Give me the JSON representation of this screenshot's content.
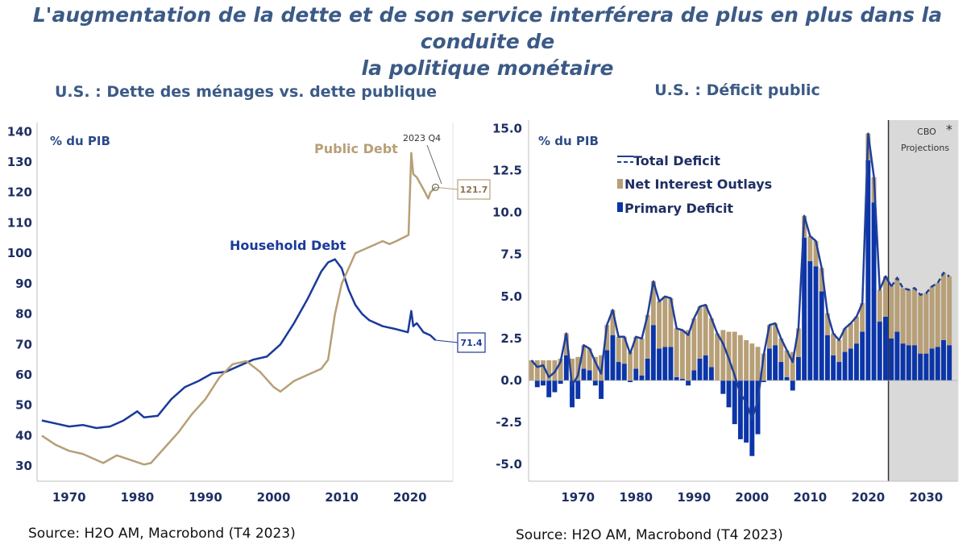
{
  "page": {
    "title_line1": "L'augmentation de la dette et de son service interférera de plus en plus dans la conduite de",
    "title_line2": "la politique monétaire"
  },
  "colors": {
    "household": "#1a3a9a",
    "public": "#b79f77",
    "deficit_line": "#1f3f9a",
    "interest": "#b79f77",
    "primary": "#0b35a8",
    "projection_bg": "#d9d9d9"
  },
  "chart_data": [
    {
      "type": "line",
      "title": "U.S. : Dette des ménages vs. dette publique",
      "unit_label": "% du PIB",
      "source": "Source: H2O AM, Macrobond (T4 2023)",
      "ylim": [
        25,
        143
      ],
      "yticks": [
        30,
        40,
        50,
        60,
        70,
        80,
        90,
        100,
        110,
        120,
        130,
        140
      ],
      "xlim": [
        1965.3,
        2026.3
      ],
      "xticks": [
        1970,
        1980,
        1990,
        2000,
        2010,
        2020
      ],
      "grid": false,
      "annotation": "2023 Q4",
      "series": [
        {
          "name": "Household Debt",
          "end_label": "71.4",
          "points": [
            [
              1966,
              45
            ],
            [
              1968,
              44
            ],
            [
              1970,
              43
            ],
            [
              1972,
              43.5
            ],
            [
              1974,
              42.5
            ],
            [
              1976,
              43
            ],
            [
              1978,
              45
            ],
            [
              1980,
              48
            ],
            [
              1981,
              46
            ],
            [
              1983,
              46.5
            ],
            [
              1985,
              52
            ],
            [
              1987,
              56
            ],
            [
              1989,
              58
            ],
            [
              1991,
              60.5
            ],
            [
              1993,
              61
            ],
            [
              1995,
              63
            ],
            [
              1997,
              65
            ],
            [
              1999,
              66
            ],
            [
              2001,
              70
            ],
            [
              2003,
              77
            ],
            [
              2005,
              85
            ],
            [
              2007,
              94
            ],
            [
              2008,
              97
            ],
            [
              2009,
              98
            ],
            [
              2010,
              95
            ],
            [
              2011,
              88
            ],
            [
              2012,
              83
            ],
            [
              2013,
              80
            ],
            [
              2014,
              78
            ],
            [
              2016,
              76
            ],
            [
              2018,
              75
            ],
            [
              2019.7,
              74
            ],
            [
              2020.2,
              81
            ],
            [
              2020.5,
              76
            ],
            [
              2021,
              77
            ],
            [
              2022,
              74
            ],
            [
              2023,
              73
            ],
            [
              2023.75,
              71.4
            ]
          ]
        },
        {
          "name": "Public Debt",
          "end_label": "121.7",
          "points": [
            [
              1966,
              40
            ],
            [
              1968,
              37
            ],
            [
              1970,
              35
            ],
            [
              1972,
              34
            ],
            [
              1974,
              32
            ],
            [
              1975,
              31
            ],
            [
              1977,
              33.5
            ],
            [
              1979,
              32
            ],
            [
              1981,
              30.5
            ],
            [
              1982,
              31
            ],
            [
              1984,
              36
            ],
            [
              1986,
              41
            ],
            [
              1988,
              47
            ],
            [
              1990,
              52
            ],
            [
              1992,
              59
            ],
            [
              1994,
              63.5
            ],
            [
              1996,
              64.5
            ],
            [
              1998,
              61
            ],
            [
              2000,
              56
            ],
            [
              2001,
              54.5
            ],
            [
              2003,
              58
            ],
            [
              2005,
              60
            ],
            [
              2007,
              62
            ],
            [
              2008,
              65
            ],
            [
              2009,
              80
            ],
            [
              2010,
              90
            ],
            [
              2011,
              95
            ],
            [
              2012,
              100
            ],
            [
              2013,
              101
            ],
            [
              2014,
              102
            ],
            [
              2016,
              104
            ],
            [
              2017,
              103
            ],
            [
              2018,
              104
            ],
            [
              2019.8,
              106
            ],
            [
              2020.2,
              133
            ],
            [
              2020.5,
              126
            ],
            [
              2021,
              125
            ],
            [
              2022,
              121
            ],
            [
              2022.7,
              118
            ],
            [
              2023,
              120
            ],
            [
              2023.75,
              121.7
            ]
          ]
        }
      ]
    },
    {
      "type": "bar",
      "title": "U.S. : Déficit public",
      "unit_label": "% du PIB",
      "source": "Source: H2O AM, Macrobond (T4 2023)",
      "ylim": [
        -6,
        15.5
      ],
      "yticks": [
        -5.0,
        -2.5,
        0.0,
        2.5,
        5.0,
        7.5,
        10.0,
        12.5,
        15.0
      ],
      "xlim": [
        1961.5,
        2035.5
      ],
      "xticks": [
        1970,
        1980,
        1990,
        2000,
        2010,
        2020,
        2030
      ],
      "projection_label_1": "CBO",
      "projection_star": "*",
      "projection_label_2": "Projections",
      "projection_start": 2024,
      "legend": [
        "Total Deficit",
        "Net Interest Outlays",
        "Primary Deficit"
      ],
      "years": [
        1962,
        1963,
        1964,
        1965,
        1966,
        1967,
        1968,
        1969,
        1970,
        1971,
        1972,
        1973,
        1974,
        1975,
        1976,
        1977,
        1978,
        1979,
        1980,
        1981,
        1982,
        1983,
        1984,
        1985,
        1986,
        1987,
        1988,
        1989,
        1990,
        1991,
        1992,
        1993,
        1994,
        1995,
        1996,
        1997,
        1998,
        1999,
        2000,
        2001,
        2002,
        2003,
        2004,
        2005,
        2006,
        2007,
        2008,
        2009,
        2010,
        2011,
        2012,
        2013,
        2014,
        2015,
        2016,
        2017,
        2018,
        2019,
        2020,
        2021,
        2022,
        2023,
        2024,
        2025,
        2026,
        2027,
        2028,
        2029,
        2030,
        2031,
        2032,
        2033,
        2034
      ],
      "total_deficit": [
        1.2,
        0.8,
        0.9,
        0.2,
        0.5,
        1.1,
        2.8,
        -0.3,
        0.3,
        2.1,
        1.9,
        1.1,
        0.4,
        3.3,
        4.2,
        2.6,
        2.6,
        1.6,
        2.6,
        2.5,
        3.9,
        5.9,
        4.7,
        5.0,
        4.9,
        3.1,
        3.0,
        2.7,
        3.7,
        4.4,
        4.5,
        3.7,
        2.8,
        2.2,
        1.3,
        0.3,
        -0.8,
        -1.3,
        -2.3,
        -1.2,
        1.5,
        3.3,
        3.4,
        2.5,
        1.8,
        1.1,
        3.1,
        9.8,
        8.6,
        8.3,
        6.7,
        4.0,
        2.8,
        2.4,
        3.1,
        3.4,
        3.8,
        4.6,
        14.7,
        12.1,
        5.4,
        6.2,
        5.6,
        6.1,
        5.5,
        5.4,
        5.5,
        5.1,
        5.2,
        5.6,
        5.8,
        6.4,
        6.2
      ],
      "net_interest": [
        1.2,
        1.2,
        1.2,
        1.2,
        1.2,
        1.3,
        1.3,
        1.3,
        1.4,
        1.4,
        1.3,
        1.4,
        1.5,
        1.5,
        1.5,
        1.5,
        1.6,
        1.7,
        1.9,
        2.2,
        2.6,
        2.6,
        2.8,
        3.0,
        2.9,
        2.9,
        2.9,
        3.0,
        3.1,
        3.1,
        3.0,
        2.9,
        2.8,
        3.0,
        2.9,
        2.9,
        2.7,
        2.4,
        2.2,
        2.0,
        1.6,
        1.4,
        1.3,
        1.4,
        1.6,
        1.7,
        1.7,
        1.3,
        1.5,
        1.5,
        1.4,
        1.3,
        1.3,
        1.3,
        1.4,
        1.5,
        1.6,
        1.7,
        1.6,
        1.5,
        1.9,
        2.4,
        3.1,
        3.2,
        3.3,
        3.3,
        3.4,
        3.5,
        3.6,
        3.7,
        3.8,
        4.0,
        4.1
      ],
      "primary_deficit": [
        0.0,
        -0.4,
        -0.3,
        -1.0,
        -0.7,
        -0.2,
        1.5,
        -1.6,
        -1.1,
        0.7,
        0.6,
        -0.3,
        -1.1,
        1.8,
        2.7,
        1.1,
        1.0,
        -0.1,
        0.7,
        0.3,
        1.3,
        3.3,
        1.9,
        2.0,
        2.0,
        0.2,
        0.1,
        -0.3,
        0.6,
        1.3,
        1.5,
        0.8,
        0.0,
        -0.8,
        -1.6,
        -2.6,
        -3.5,
        -3.7,
        -4.5,
        -3.2,
        -0.1,
        1.9,
        2.1,
        1.1,
        0.2,
        -0.6,
        1.4,
        8.5,
        7.1,
        6.8,
        5.3,
        2.7,
        1.5,
        1.1,
        1.7,
        1.9,
        2.2,
        2.9,
        13.1,
        10.6,
        3.5,
        3.8,
        2.5,
        2.9,
        2.2,
        2.1,
        2.1,
        1.6,
        1.6,
        1.9,
        2.0,
        2.4,
        2.1
      ]
    }
  ]
}
